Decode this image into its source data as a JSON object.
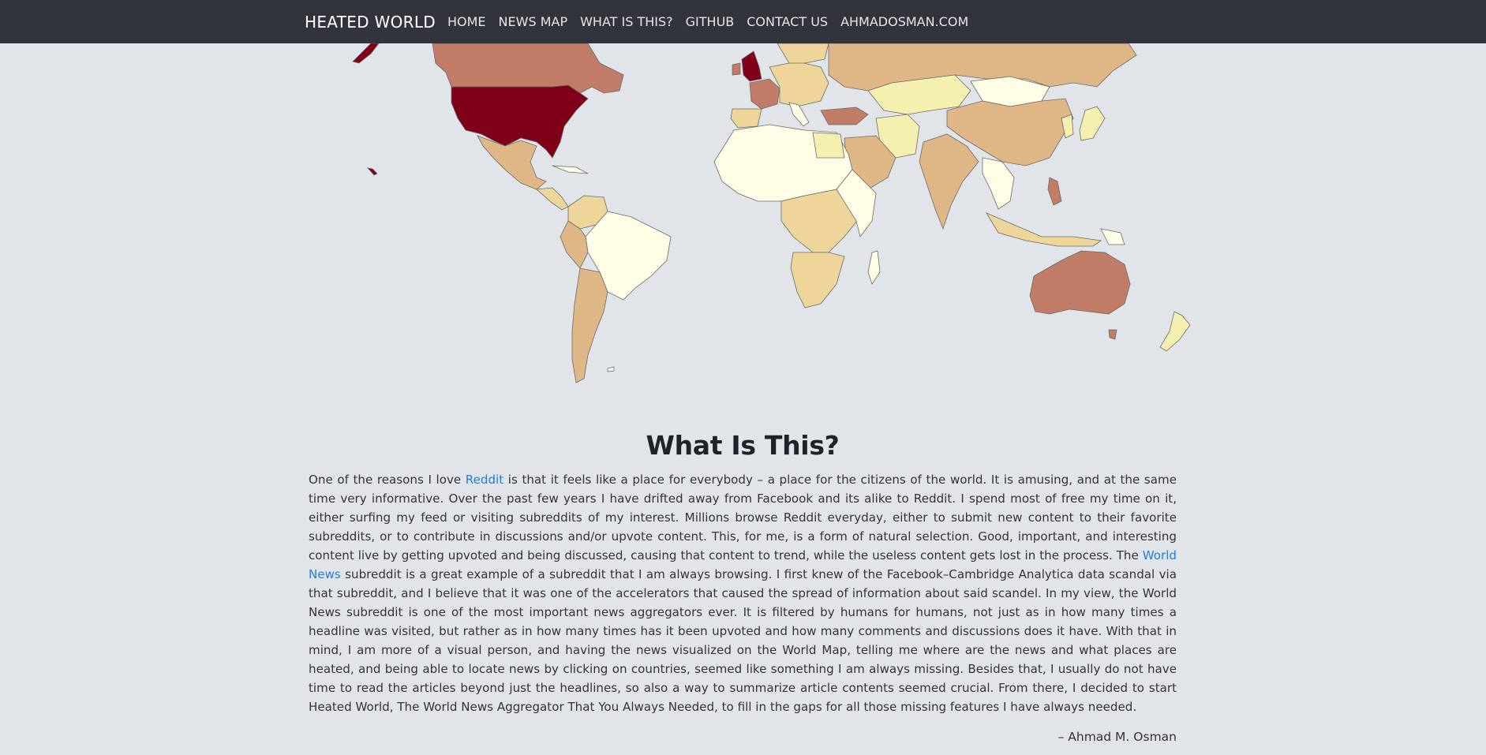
{
  "navbar": {
    "brand": "HEATED WORLD",
    "links": [
      "HOME",
      "NEWS MAP",
      "WHAT IS THIS?",
      "GITHUB",
      "CONTACT US",
      "AHMADOSMAN.COM"
    ]
  },
  "map": {
    "colors": {
      "hottest": "#7f0019",
      "hot": "#c17c68",
      "warm": "#dfb686",
      "mild": "#eed69a",
      "cool": "#f6f0b0",
      "cold": "#fffde6",
      "ocean": "#e1e5ea"
    }
  },
  "about": {
    "heading": "What Is This?",
    "p1_before_reddit": "One of the reasons I love ",
    "reddit_link": "Reddit",
    "p1_after_reddit": " is that it feels like a place for everybody – a place for the citizens of the world. It is amusing, and at the same time very informative. Over the past few years I have drifted away from Facebook and its alike to Reddit. I spend most of free my time on it, either surfing my feed or visiting subreddits of my interest. Millions browse Reddit everyday, either to submit new content to their favorite subreddits, or to contribute in discussions and/or upvote content. This, for me, is a form of natural selection. Good, important, and interesting content live by getting upvoted and being discussed, causing that content to trend, while the useless content gets lost in the process. The ",
    "worldnews_link": "World News",
    "p1_after_worldnews": " subreddit is a great example of a subreddit that I am always browsing. I first knew of the Facebook–Cambridge Analytica data scandal via that subreddit, and I believe that it was one of the accelerators that caused the spread of information about said scandel. In my view, the World News subreddit is one of the most important news aggregators ever. It is filtered by humans for humans, not just as in how many times a headline was visited, but rather as in how many times has it been upvoted and how many comments and discussions does it have. With that in mind, I am more of a visual person, and having the news visualized on the World Map, telling me where are the news and what places are heated, and being able to locate news by clicking on countries, seemed like something I am always missing. Besides that, I usually do not have time to read the articles beyond just the headlines, so also a way to summarize article contents seemed crucial. From there, I decided to start Heated World, The World News Aggregator That You Always Needed, to fill in the gaps for all those missing features I have always needed.",
    "signature": "– Ahmad M. Osman"
  }
}
